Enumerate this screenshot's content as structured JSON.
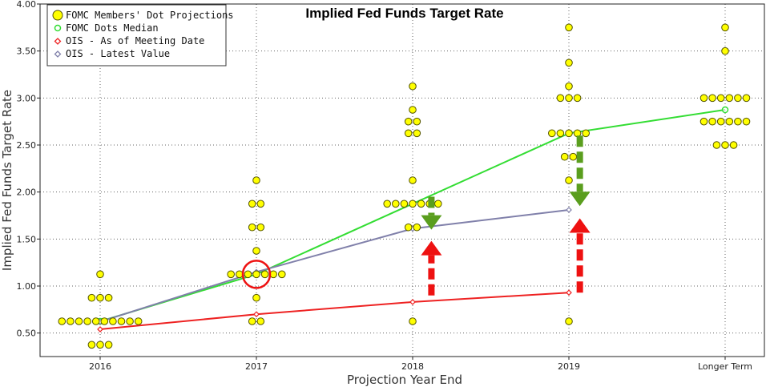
{
  "chart_data": {
    "type": "scatter",
    "title": "Implied Fed Funds Target Rate",
    "xlabel": "Projection Year End",
    "ylabel": "Implied Fed Funds Target Rate",
    "categories": [
      "2016",
      "2017",
      "2018",
      "2019",
      "Longer Term"
    ],
    "y_ticks": [
      "0.50",
      "1.00",
      "1.50",
      "2.00",
      "2.50",
      "3.00",
      "3.50",
      "4.00"
    ],
    "ylim": [
      0.25,
      4.0
    ],
    "grid": true,
    "legend_position": "top-left",
    "legend": [
      "FOMC Members' Dot Projections",
      "FOMC Dots Median",
      "OIS - As of Meeting Date",
      "OIS - Latest Value"
    ],
    "dots": [
      {
        "category": "2016",
        "groups": [
          {
            "y": 1.125,
            "count": 1
          },
          {
            "y": 0.875,
            "count": 3
          },
          {
            "y": 0.625,
            "count": 10
          },
          {
            "y": 0.375,
            "count": 3
          }
        ]
      },
      {
        "category": "2017",
        "groups": [
          {
            "y": 2.125,
            "count": 1
          },
          {
            "y": 1.875,
            "count": 2
          },
          {
            "y": 1.625,
            "count": 2
          },
          {
            "y": 1.375,
            "count": 1
          },
          {
            "y": 1.125,
            "count": 7
          },
          {
            "y": 0.875,
            "count": 1
          },
          {
            "y": 0.625,
            "count": 2
          }
        ]
      },
      {
        "category": "2018",
        "groups": [
          {
            "y": 3.125,
            "count": 1
          },
          {
            "y": 2.875,
            "count": 1
          },
          {
            "y": 2.75,
            "count": 2
          },
          {
            "y": 2.625,
            "count": 2
          },
          {
            "y": 2.125,
            "count": 1
          },
          {
            "y": 1.875,
            "count": 7
          },
          {
            "y": 1.625,
            "count": 2
          },
          {
            "y": 0.625,
            "count": 1
          }
        ]
      },
      {
        "category": "2019",
        "groups": [
          {
            "y": 3.75,
            "count": 1
          },
          {
            "y": 3.375,
            "count": 1
          },
          {
            "y": 3.125,
            "count": 1
          },
          {
            "y": 3.0,
            "count": 3
          },
          {
            "y": 2.625,
            "count": 5
          },
          {
            "y": 2.375,
            "count": 2
          },
          {
            "y": 2.125,
            "count": 1
          },
          {
            "y": 0.625,
            "count": 1
          }
        ]
      },
      {
        "category": "Longer Term",
        "groups": [
          {
            "y": 3.75,
            "count": 1
          },
          {
            "y": 3.5,
            "count": 1
          },
          {
            "y": 3.0,
            "count": 6
          },
          {
            "y": 2.75,
            "count": 6
          },
          {
            "y": 2.5,
            "count": 3
          }
        ]
      }
    ],
    "series": [
      {
        "name": "FOMC Dots Median",
        "color": "#33dd33",
        "marker": "circle",
        "points": [
          [
            "2016",
            0.625
          ],
          [
            "2017",
            1.125
          ],
          [
            "2018",
            1.875
          ],
          [
            "2019",
            2.625
          ],
          [
            "Longer Term",
            2.875
          ]
        ]
      },
      {
        "name": "OIS - As of Meeting Date",
        "color": "#ee2222",
        "marker": "diamond",
        "points": [
          [
            "2016",
            0.54
          ],
          [
            "2017",
            0.7
          ],
          [
            "2018",
            0.83
          ],
          [
            "2019",
            0.93
          ]
        ]
      },
      {
        "name": "OIS - Latest Value",
        "color": "#8080aa",
        "marker": "diamond",
        "points": [
          [
            "2016",
            0.62
          ],
          [
            "2017",
            1.15
          ],
          [
            "2018",
            1.61
          ],
          [
            "2019",
            1.81
          ]
        ]
      }
    ],
    "annotations": {
      "circle_highlight": {
        "category": "2017",
        "y": 1.125,
        "color": "#ee1111"
      },
      "green_down_arrows": [
        {
          "category": "2018",
          "offset_cat": 0.12,
          "y_top": 1.95,
          "y_tip": 1.6
        },
        {
          "category": "2019",
          "offset_cat": 0.07,
          "y_top": 2.6,
          "y_tip": 1.85
        }
      ],
      "red_up_arrows": [
        {
          "category": "2018",
          "offset_cat": 0.12,
          "y_bottom": 0.9,
          "y_tip": 1.48
        },
        {
          "category": "2019",
          "offset_cat": 0.07,
          "y_bottom": 0.93,
          "y_tip": 1.72
        }
      ]
    },
    "colors": {
      "dot_fill": "#ffff00",
      "dot_stroke": "#555500",
      "grid": "#666666",
      "green_arrow": "#5a9e1e",
      "red_arrow": "#ee1111"
    }
  }
}
